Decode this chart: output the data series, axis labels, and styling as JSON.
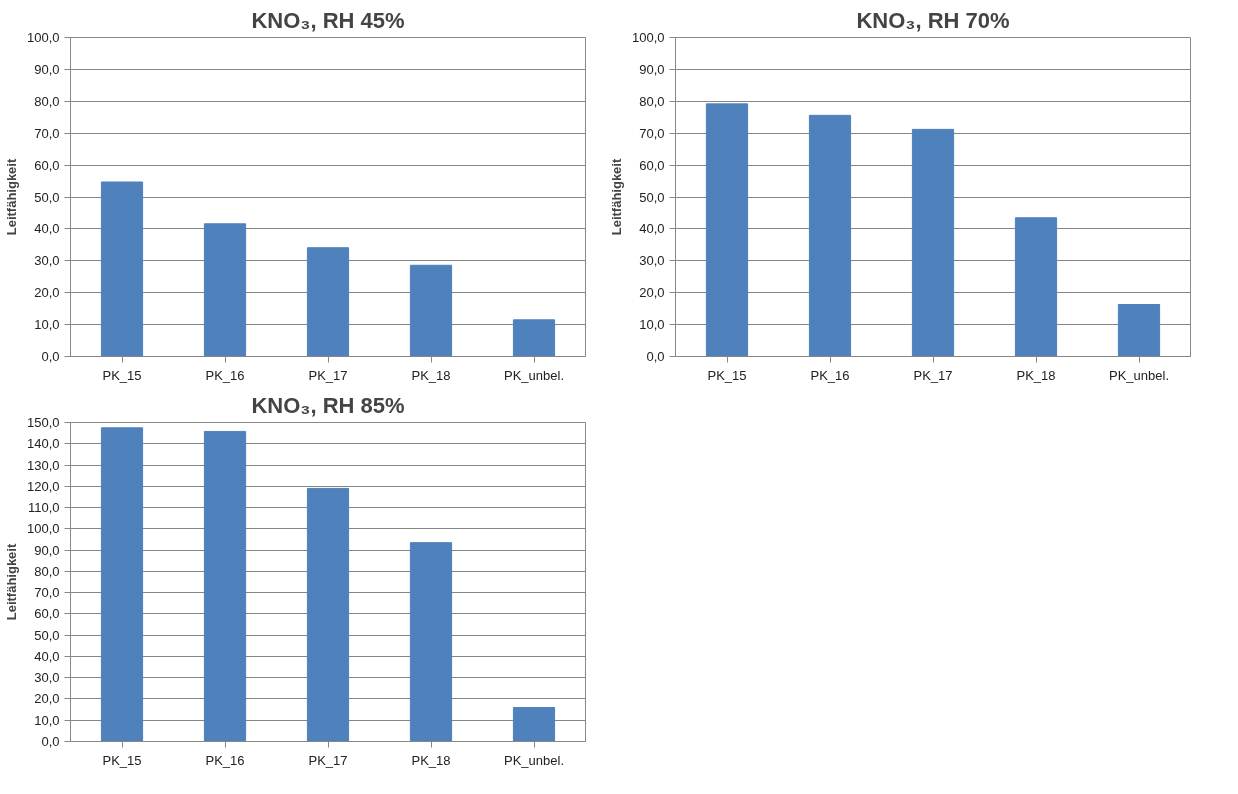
{
  "chart_data": [
    {
      "type": "bar",
      "title": "KNO₃, RH 45%",
      "ylabel": "Leitfähigkeit",
      "categories": [
        "PK_15",
        "PK_16",
        "PK_17",
        "PK_18",
        "PK_unbel."
      ],
      "values": [
        54.7,
        41.6,
        34.1,
        28.6,
        11.5
      ],
      "color": "#4f81bd",
      "ylim": [
        0,
        100
      ],
      "yticks": [
        {
          "value": 0,
          "label": "0,0"
        },
        {
          "value": 10,
          "label": "10,0"
        },
        {
          "value": 20,
          "label": "20,0"
        },
        {
          "value": 30,
          "label": "30,0"
        },
        {
          "value": 40,
          "label": "40,0"
        },
        {
          "value": 50,
          "label": "50,0"
        },
        {
          "value": 60,
          "label": "60,0"
        },
        {
          "value": 70,
          "label": "70,0"
        },
        {
          "value": 80,
          "label": "80,0"
        },
        {
          "value": 90,
          "label": "90,0"
        },
        {
          "value": 100,
          "label": "100,0"
        }
      ],
      "grid": "y"
    },
    {
      "type": "bar",
      "title": "KNO₃, RH 70%",
      "ylabel": "Leitfähigkeit",
      "categories": [
        "PK_15",
        "PK_16",
        "PK_17",
        "PK_18",
        "PK_unbel."
      ],
      "values": [
        79.2,
        75.6,
        71.2,
        43.5,
        16.3
      ],
      "color": "#4f81bd",
      "ylim": [
        0,
        100
      ],
      "yticks": [
        {
          "value": 0,
          "label": "0,0"
        },
        {
          "value": 10,
          "label": "10,0"
        },
        {
          "value": 20,
          "label": "20,0"
        },
        {
          "value": 30,
          "label": "30,0"
        },
        {
          "value": 40,
          "label": "40,0"
        },
        {
          "value": 50,
          "label": "50,0"
        },
        {
          "value": 60,
          "label": "60,0"
        },
        {
          "value": 70,
          "label": "70,0"
        },
        {
          "value": 80,
          "label": "80,0"
        },
        {
          "value": 90,
          "label": "90,0"
        },
        {
          "value": 100,
          "label": "100,0"
        }
      ],
      "grid": "y"
    },
    {
      "type": "bar",
      "title": "KNO₃, RH 85%",
      "ylabel": "Leitfähigkeit",
      "categories": [
        "PK_15",
        "PK_16",
        "PK_17",
        "PK_18",
        "PK_unbel."
      ],
      "values": [
        147.5,
        145.8,
        119.0,
        93.5,
        16.0
      ],
      "color": "#4f81bd",
      "ylim": [
        0,
        150
      ],
      "yticks": [
        {
          "value": 0,
          "label": "0,0"
        },
        {
          "value": 10,
          "label": "10,0"
        },
        {
          "value": 20,
          "label": "20,0"
        },
        {
          "value": 30,
          "label": "30,0"
        },
        {
          "value": 40,
          "label": "40,0"
        },
        {
          "value": 50,
          "label": "50,0"
        },
        {
          "value": 60,
          "label": "60,0"
        },
        {
          "value": 70,
          "label": "70,0"
        },
        {
          "value": 80,
          "label": "80,0"
        },
        {
          "value": 90,
          "label": "90,0"
        },
        {
          "value": 100,
          "label": "100,0"
        },
        {
          "value": 110,
          "label": "110,0"
        },
        {
          "value": 120,
          "label": "120,0"
        },
        {
          "value": 130,
          "label": "130,0"
        },
        {
          "value": 140,
          "label": "140,0"
        },
        {
          "value": 150,
          "label": "150,0"
        }
      ],
      "grid": "y"
    }
  ]
}
